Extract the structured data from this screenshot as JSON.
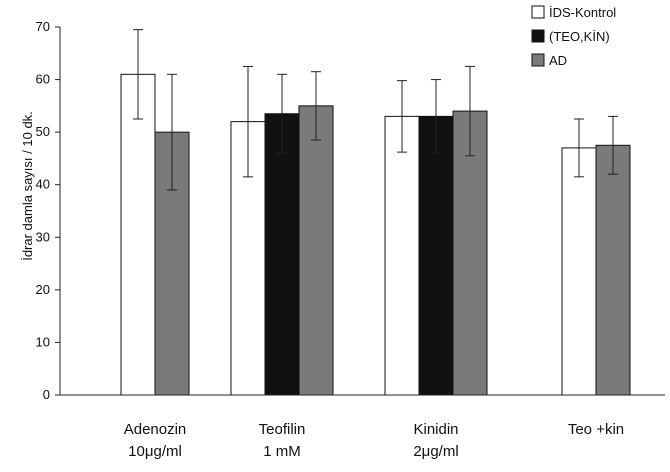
{
  "chart_data": {
    "type": "bar",
    "categories": [
      "Adenozin",
      "Teofilin",
      "Kinidin",
      "Teo +kin"
    ],
    "category_sublabels": [
      "10μg/ml",
      "1 mM",
      "2μg/ml",
      ""
    ],
    "ylabel": "İdrar damla sayısı / 10 dk.",
    "ylim": [
      0,
      70
    ],
    "yticks": [
      0,
      10,
      20,
      30,
      40,
      50,
      60,
      70
    ],
    "grid": false,
    "legend_position": "top-right",
    "series": [
      {
        "name": "İDS-Kontrol",
        "color": "#ffffff",
        "values": [
          61,
          52,
          53,
          47
        ],
        "errors": [
          8.5,
          10.5,
          6.8,
          5.5
        ]
      },
      {
        "name": "(TEO,KİN)",
        "color": "#111111",
        "values": [
          null,
          53.5,
          53,
          null
        ],
        "errors": [
          null,
          7.5,
          7,
          null
        ]
      },
      {
        "name": "AD",
        "color": "#7a7a7a",
        "values": [
          50,
          55,
          54,
          47.5
        ],
        "errors": [
          11,
          6.5,
          8.5,
          5.5
        ]
      }
    ]
  }
}
